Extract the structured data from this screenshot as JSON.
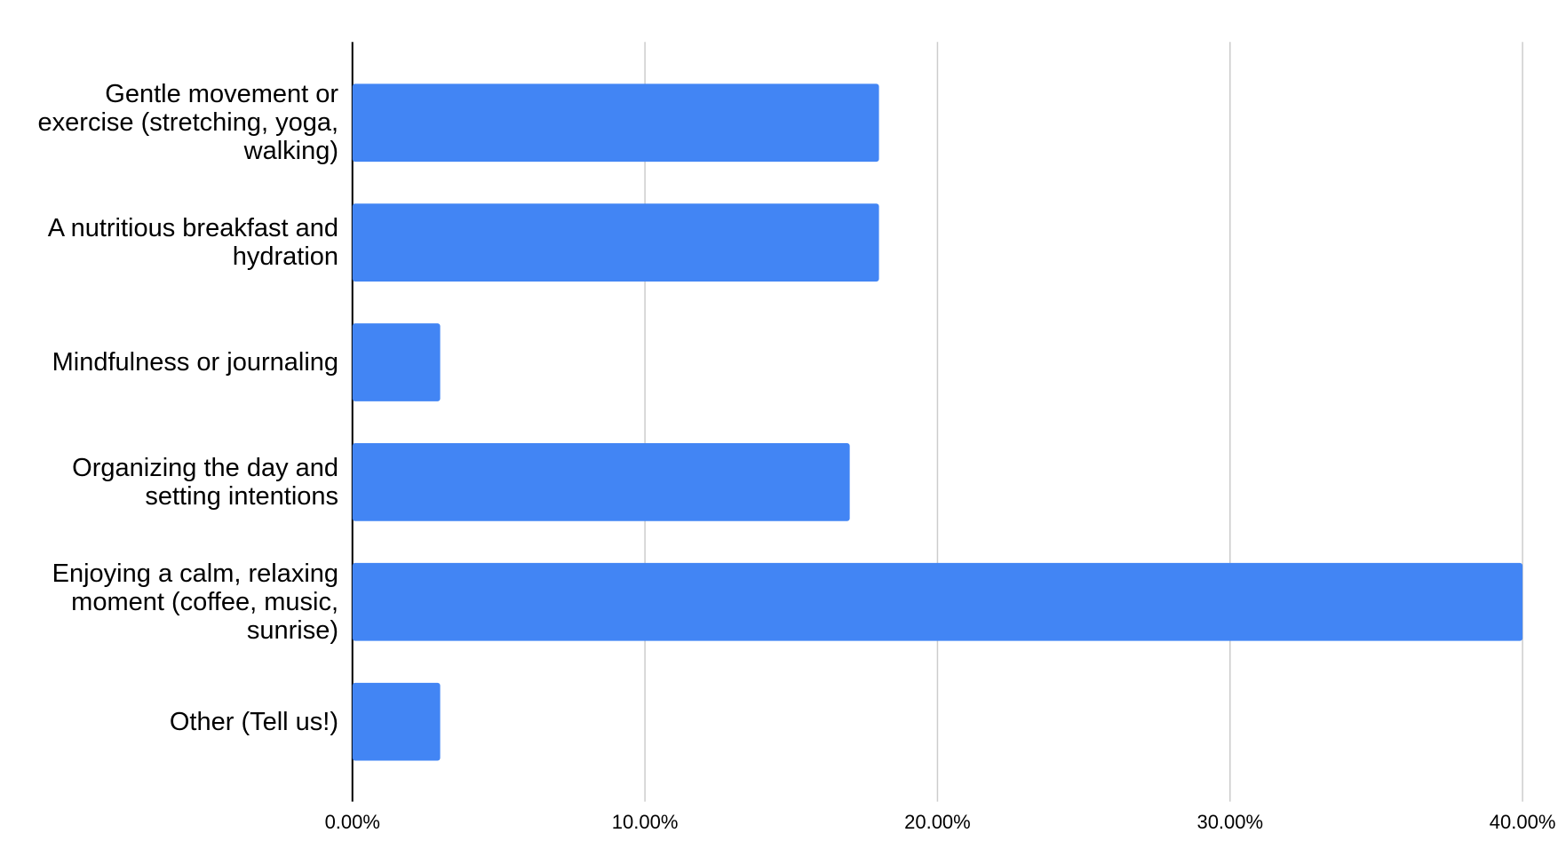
{
  "chart_data": {
    "type": "bar",
    "orientation": "horizontal",
    "categories": [
      "Gentle movement or exercise (stretching, yoga, walking)",
      "A nutritious breakfast and hydration",
      "Mindfulness or journaling",
      "Organizing the day and setting intentions",
      "Enjoying a calm, relaxing moment (coffee, music, sunrise)",
      "Other (Tell us!)"
    ],
    "values": [
      18,
      18,
      3,
      17,
      40,
      3
    ],
    "color": "#4285f4",
    "xlim": [
      0,
      40
    ],
    "xticks": [
      {
        "value": 0,
        "label": "0.00%"
      },
      {
        "value": 10,
        "label": "10.00%"
      },
      {
        "value": 20,
        "label": "20.00%"
      },
      {
        "value": 30,
        "label": "30.00%"
      },
      {
        "value": 40,
        "label": "40.00%"
      }
    ],
    "grid": true
  }
}
